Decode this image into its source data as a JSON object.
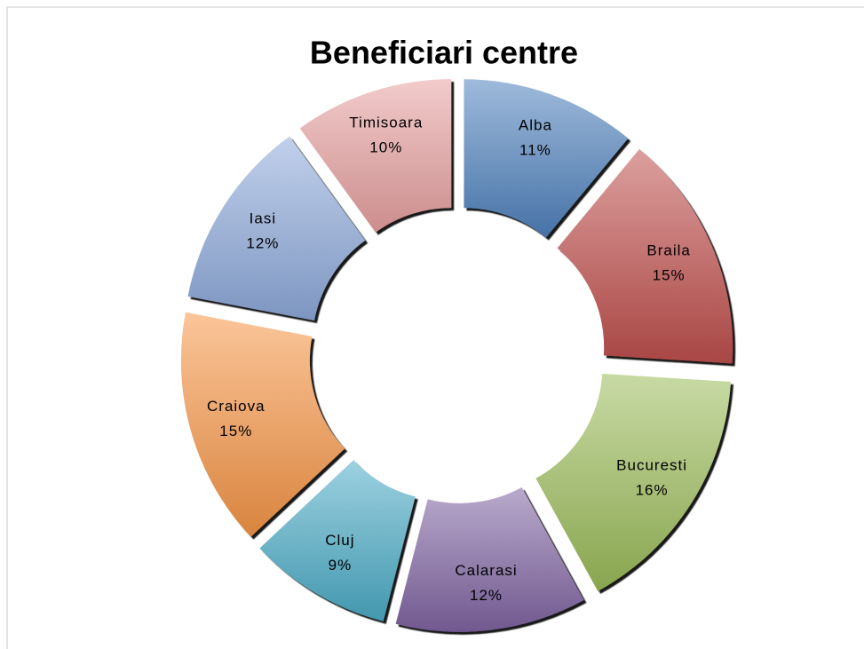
{
  "chart_data": {
    "type": "donut",
    "title": "Beneficiari centre",
    "categories": [
      "Alba",
      "Braila",
      "Bucuresti",
      "Calarasi",
      "Cluj",
      "Craiova",
      "Iasi",
      "Timisoara"
    ],
    "values": [
      11,
      15,
      16,
      12,
      9,
      15,
      12,
      10
    ],
    "value_labels": [
      "11%",
      "15%",
      "16%",
      "12%",
      "9%",
      "15%",
      "12%",
      "10%"
    ],
    "colors": [
      "#4f81bd",
      "#c0504d",
      "#9bbb59",
      "#8064a2",
      "#4bacc6",
      "#f79646",
      "#8eaadb",
      "#e8a0a0"
    ]
  }
}
